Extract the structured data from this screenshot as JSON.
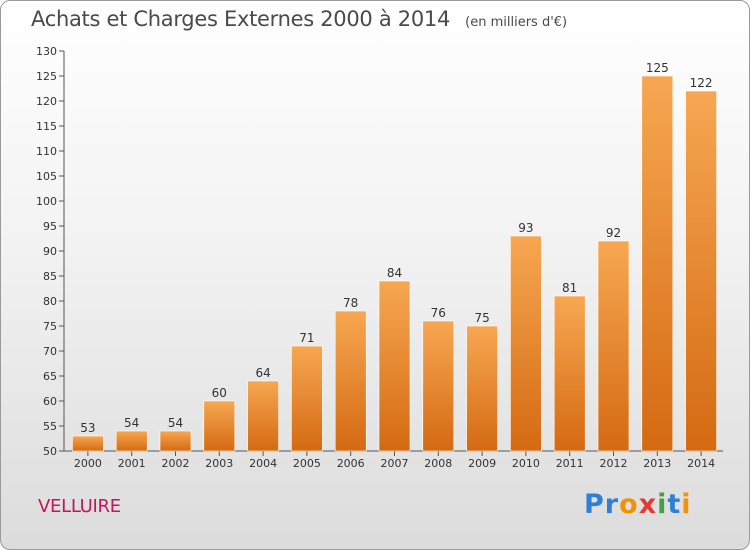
{
  "title": "Achats et Charges Externes 2000 à 2014",
  "subtitle": "(en milliers d'€)",
  "commune": "VELLUIRE",
  "logo": {
    "letters": [
      {
        "char": "P",
        "color": "#2f7fd6"
      },
      {
        "char": "r",
        "color": "#2f7fd6"
      },
      {
        "char": "o",
        "color": "#f39200"
      },
      {
        "char": "x",
        "color": "#e53935"
      },
      {
        "char": "i",
        "color": "#43a047"
      },
      {
        "char": "t",
        "color": "#2f7fd6"
      },
      {
        "char": "i",
        "color": "#f39200"
      }
    ]
  },
  "colors": {
    "bar_top": "#f7a752",
    "bar_bottom": "#d46a12",
    "title": "#4a4a4a",
    "commune": "#c2185b"
  },
  "chart_data": {
    "type": "bar",
    "title": "Achats et Charges Externes 2000 à 2014",
    "subtitle": "(en milliers d'€)",
    "categories": [
      "2000",
      "2001",
      "2002",
      "2003",
      "2004",
      "2005",
      "2006",
      "2007",
      "2008",
      "2009",
      "2010",
      "2011",
      "2012",
      "2013",
      "2014"
    ],
    "values": [
      53,
      54,
      54,
      60,
      64,
      71,
      78,
      84,
      76,
      75,
      93,
      81,
      92,
      125,
      122
    ],
    "ylim": [
      50,
      130
    ],
    "yticks": [
      50,
      55,
      60,
      65,
      70,
      75,
      80,
      85,
      90,
      95,
      100,
      105,
      110,
      115,
      120,
      125,
      130
    ],
    "grid": false,
    "legend": "none"
  }
}
